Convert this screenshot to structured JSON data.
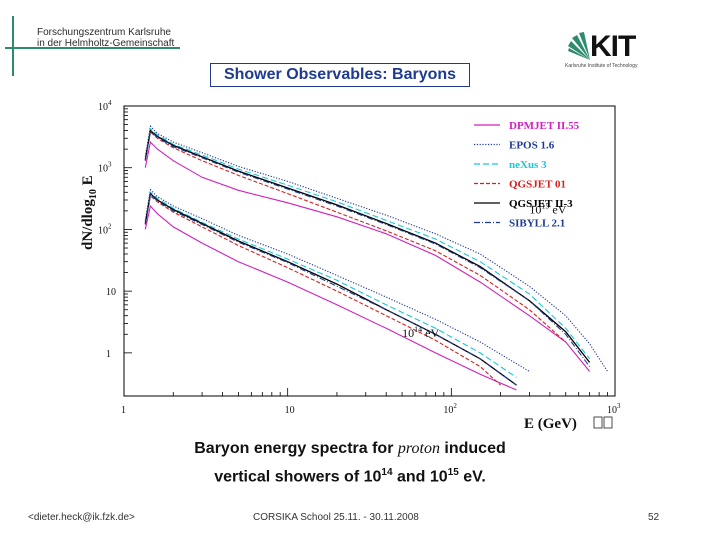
{
  "header": {
    "institution_line1": "Forschungszentrum Karlsruhe",
    "institution_line2": "in der Helmholtz-Gemeinschaft",
    "logo_text": "KIT",
    "logo_subtitle": "Karlsruhe Institute of Technology",
    "slide_title": "Shower Observables: Baryons"
  },
  "caption": {
    "line1_a": "Baryon energy spectra for ",
    "line1_b": "proton",
    "line1_c": " induced",
    "line2": "vertical showers of 10",
    "exp14": "14",
    "and": " and 10",
    "exp15": "15",
    "end": " eV."
  },
  "footer": {
    "email": "<dieter.heck@ik.fzk.de>",
    "event": "CORSIKA School 25.11. - 30.11.2008",
    "page": "52"
  },
  "chart_data": {
    "type": "line",
    "xscale": "log",
    "yscale": "log",
    "xlim": [
      1,
      1000
    ],
    "ylim": [
      0.2,
      10000
    ],
    "xlabel": "E (GeV)",
    "ylabel": "dN/dlog10 E",
    "x_ticks": [
      {
        "base": "1",
        "exp": ""
      },
      {
        "base": "10",
        "exp": ""
      },
      {
        "base": "10",
        "exp": "2"
      },
      {
        "base": "10",
        "exp": "3"
      }
    ],
    "y_ticks": [
      {
        "base": "1",
        "exp": ""
      },
      {
        "base": "10",
        "exp": ""
      },
      {
        "base": "10",
        "exp": "2"
      },
      {
        "base": "10",
        "exp": "3"
      },
      {
        "base": "10",
        "exp": "4"
      }
    ],
    "annotations": [
      {
        "base": "10",
        "exp": "15",
        "unit": " eV"
      },
      {
        "base": "10",
        "exp": "14",
        "unit": " eV"
      }
    ],
    "series": [
      {
        "name": "DPMJET II.55",
        "color": "#d020c0",
        "dash": "solid",
        "e15": [
          [
            1.35,
            1000
          ],
          [
            1.45,
            2600
          ],
          [
            1.6,
            2000
          ],
          [
            2,
            1300
          ],
          [
            3,
            700
          ],
          [
            5,
            430
          ],
          [
            10,
            270
          ],
          [
            20,
            160
          ],
          [
            40,
            85
          ],
          [
            80,
            38
          ],
          [
            150,
            14
          ],
          [
            300,
            4
          ],
          [
            500,
            1.5
          ],
          [
            700,
            0.5
          ]
        ],
        "e14": [
          [
            1.35,
            100
          ],
          [
            1.45,
            240
          ],
          [
            1.6,
            180
          ],
          [
            2,
            110
          ],
          [
            3,
            60
          ],
          [
            5,
            30
          ],
          [
            10,
            14
          ],
          [
            20,
            6
          ],
          [
            40,
            2.5
          ],
          [
            80,
            1
          ],
          [
            150,
            0.45
          ],
          [
            250,
            0.25
          ]
        ]
      },
      {
        "name": "EPOS 1.6",
        "color": "#1f3a93",
        "dash": "1.2 1.6",
        "e15": [
          [
            1.35,
            1500
          ],
          [
            1.45,
            4700
          ],
          [
            1.6,
            3600
          ],
          [
            2,
            2600
          ],
          [
            3,
            1750
          ],
          [
            5,
            1050
          ],
          [
            10,
            600
          ],
          [
            20,
            320
          ],
          [
            40,
            170
          ],
          [
            80,
            85
          ],
          [
            150,
            40
          ],
          [
            300,
            12
          ],
          [
            500,
            4
          ],
          [
            700,
            1.4
          ],
          [
            900,
            0.5
          ]
        ],
        "e14": [
          [
            1.35,
            140
          ],
          [
            1.45,
            440
          ],
          [
            1.6,
            340
          ],
          [
            2,
            240
          ],
          [
            3,
            150
          ],
          [
            5,
            80
          ],
          [
            10,
            40
          ],
          [
            20,
            18
          ],
          [
            40,
            8
          ],
          [
            80,
            3.5
          ],
          [
            150,
            1.5
          ],
          [
            300,
            0.5
          ]
        ]
      },
      {
        "name": "neXus 3",
        "color": "#18c8d8",
        "dash": "6 3",
        "e15": [
          [
            1.35,
            1400
          ],
          [
            1.45,
            4300
          ],
          [
            1.6,
            3400
          ],
          [
            2,
            2400
          ],
          [
            3,
            1600
          ],
          [
            5,
            950
          ],
          [
            10,
            520
          ],
          [
            20,
            280
          ],
          [
            40,
            140
          ],
          [
            80,
            70
          ],
          [
            150,
            30
          ],
          [
            300,
            9
          ],
          [
            500,
            2.5
          ],
          [
            700,
            0.8
          ]
        ],
        "e14": [
          [
            1.35,
            130
          ],
          [
            1.45,
            400
          ],
          [
            1.6,
            320
          ],
          [
            2,
            220
          ],
          [
            3,
            130
          ],
          [
            5,
            70
          ],
          [
            10,
            33
          ],
          [
            20,
            15
          ],
          [
            40,
            6
          ],
          [
            80,
            2.5
          ],
          [
            150,
            1
          ],
          [
            250,
            0.4
          ]
        ]
      },
      {
        "name": "QGSJET 01",
        "color": "#d81f1f",
        "dash": "4 2",
        "e15": [
          [
            1.35,
            1300
          ],
          [
            1.45,
            3800
          ],
          [
            1.6,
            3000
          ],
          [
            2,
            2100
          ],
          [
            3,
            1300
          ],
          [
            5,
            750
          ],
          [
            10,
            380
          ],
          [
            20,
            190
          ],
          [
            40,
            95
          ],
          [
            80,
            45
          ],
          [
            150,
            18
          ],
          [
            300,
            5
          ],
          [
            500,
            1.5
          ]
        ],
        "e14": [
          [
            1.35,
            120
          ],
          [
            1.45,
            350
          ],
          [
            1.6,
            280
          ],
          [
            2,
            190
          ],
          [
            3,
            110
          ],
          [
            5,
            55
          ],
          [
            10,
            24
          ],
          [
            20,
            10
          ],
          [
            40,
            4
          ],
          [
            80,
            1.6
          ],
          [
            150,
            0.6
          ],
          [
            200,
            0.3
          ]
        ]
      },
      {
        "name": "QGSJET II-3",
        "color": "#000000",
        "dash": "solid",
        "e15": [
          [
            1.35,
            1350
          ],
          [
            1.45,
            4000
          ],
          [
            1.6,
            3200
          ],
          [
            2,
            2300
          ],
          [
            3,
            1500
          ],
          [
            5,
            880
          ],
          [
            10,
            470
          ],
          [
            20,
            250
          ],
          [
            40,
            125
          ],
          [
            80,
            60
          ],
          [
            150,
            25
          ],
          [
            300,
            7
          ],
          [
            500,
            2.2
          ],
          [
            700,
            0.7
          ]
        ],
        "e14": [
          [
            1.35,
            125
          ],
          [
            1.45,
            380
          ],
          [
            1.6,
            300
          ],
          [
            2,
            210
          ],
          [
            3,
            125
          ],
          [
            5,
            65
          ],
          [
            10,
            30
          ],
          [
            20,
            13
          ],
          [
            40,
            5
          ],
          [
            80,
            2
          ],
          [
            150,
            0.8
          ],
          [
            250,
            0.3
          ]
        ]
      },
      {
        "name": "SIBYLL 2.1",
        "color": "#1f3a93",
        "dash": "6 2 1 2",
        "e15": [
          [
            1.35,
            1300
          ],
          [
            1.45,
            3900
          ],
          [
            1.6,
            3100
          ],
          [
            2,
            2200
          ],
          [
            3,
            1450
          ],
          [
            5,
            850
          ],
          [
            10,
            450
          ],
          [
            20,
            240
          ],
          [
            40,
            120
          ],
          [
            80,
            58
          ],
          [
            150,
            24
          ],
          [
            300,
            7
          ],
          [
            500,
            2
          ],
          [
            700,
            0.6
          ]
        ],
        "e14": [
          [
            1.35,
            120
          ],
          [
            1.45,
            370
          ],
          [
            1.6,
            290
          ],
          [
            2,
            200
          ],
          [
            3,
            120
          ],
          [
            5,
            62
          ],
          [
            10,
            29
          ],
          [
            20,
            12
          ],
          [
            40,
            5
          ],
          [
            80,
            2
          ],
          [
            150,
            0.8
          ],
          [
            250,
            0.3
          ]
        ]
      }
    ]
  }
}
